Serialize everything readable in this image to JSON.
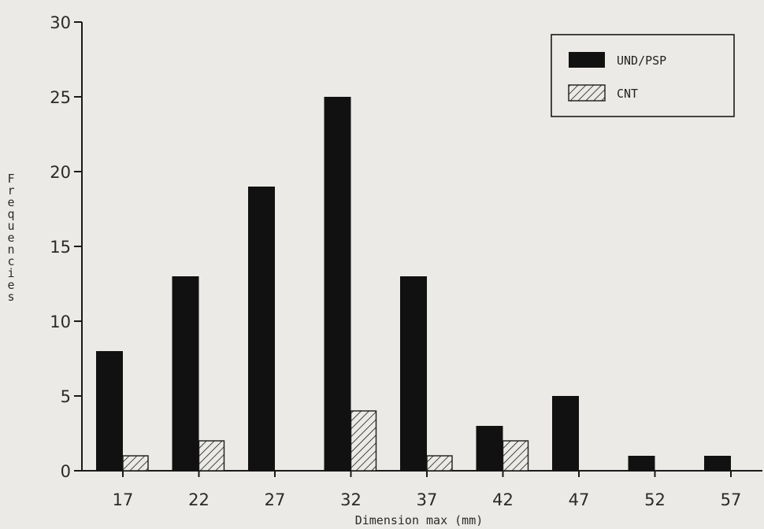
{
  "chart_data": {
    "type": "bar",
    "title": "",
    "xlabel": "Dimension max (mm)",
    "ylabel": "Frequencies",
    "ylim": [
      0,
      30
    ],
    "yticks": [
      "0",
      "5",
      "10",
      "15",
      "20",
      "25",
      "30"
    ],
    "categories": [
      "17",
      "22",
      "27",
      "32",
      "37",
      "42",
      "47",
      "52",
      "57"
    ],
    "series": [
      {
        "name": "UND/PSP",
        "values": [
          8,
          13,
          19,
          25,
          13,
          3,
          5,
          1,
          1
        ],
        "color": "#111111",
        "fill": "solid"
      },
      {
        "name": "CNT",
        "values": [
          1,
          2,
          0,
          4,
          1,
          2,
          0,
          0,
          0
        ],
        "color": "#111111",
        "fill": "hatched"
      }
    ],
    "legend_position": "top-right",
    "grid": false
  }
}
